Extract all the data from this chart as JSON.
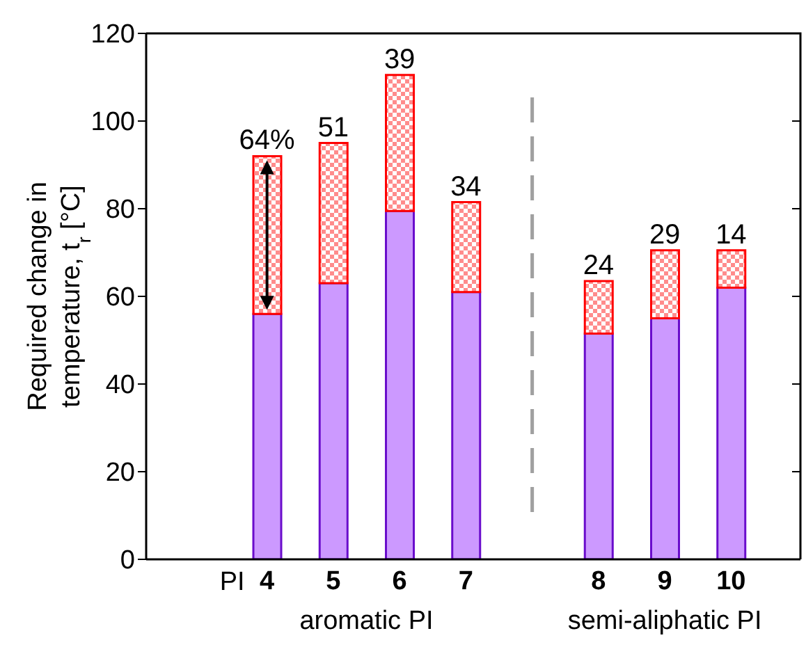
{
  "chart_data": {
    "type": "bar",
    "stacked": true,
    "ylabel": "Required change in temperature, t$_{r}$ [°C]",
    "categories": [
      "4",
      "5",
      "6",
      "7",
      null,
      "8",
      "9",
      "10"
    ],
    "series": [
      {
        "color": "#cc99ff",
        "values": [
          56,
          63,
          79.5,
          61,
          null,
          51.5,
          55,
          62
        ]
      },
      {
        "color": "#ff0000",
        "values": [
          36,
          32,
          31,
          20.5,
          null,
          12,
          15.5,
          8.5
        ]
      }
    ],
    "ylim": [
      0,
      120
    ],
    "yticks": [
      0,
      20,
      40,
      60,
      80,
      100,
      120
    ],
    "annotations": [
      "PI",
      "aromatic PI",
      "semi-aliphatic PI",
      {
        "text": "64%",
        "x": "4",
        "y": 92
      },
      {
        "text": "51",
        "x": "5",
        "y": 95
      },
      {
        "text": "39",
        "x": "6",
        "y": 110.5
      },
      {
        "text": "34",
        "x": "7",
        "y": 81.5
      },
      {
        "text": "24",
        "x": "8",
        "y": 63.5
      },
      {
        "text": "29",
        "x": "9",
        "y": 70.5
      },
      {
        "text": "14",
        "x": "10",
        "y": 70.5
      }
    ]
  }
}
